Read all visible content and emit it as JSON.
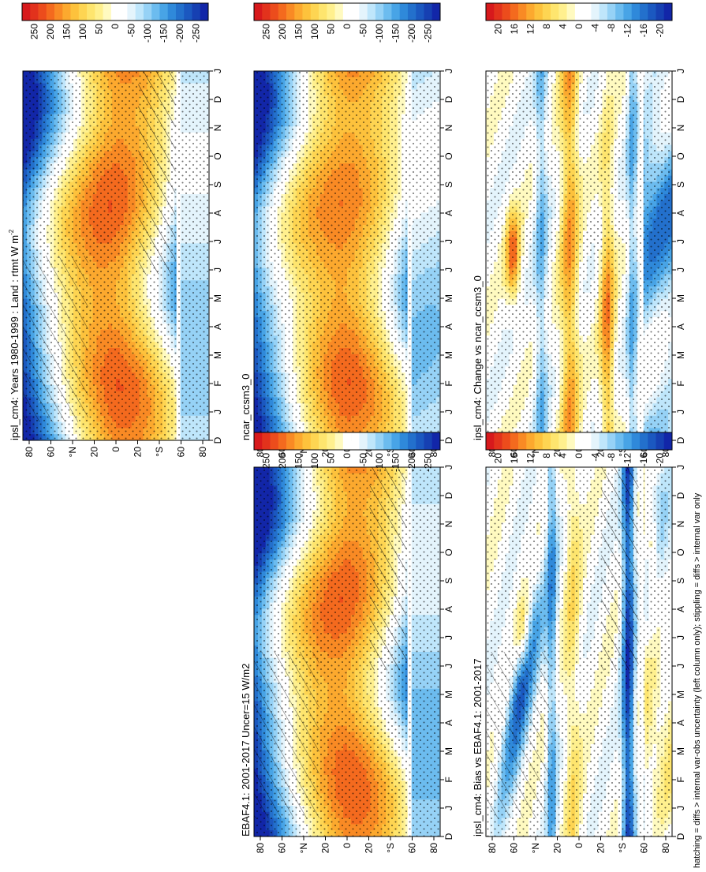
{
  "figure": {
    "footnote": "hatching = diffs > internal var-obs uncertainty (left column only); stippling = diffs > internal var only"
  },
  "chart_data": [
    {
      "type": "heatmap",
      "id": "ipsl",
      "title": "ipsl_cm4: Years 1980-1999 : Land : rtmt W m",
      "title_sup": "-2",
      "x": [
        "D",
        "J",
        "F",
        "M",
        "A",
        "M",
        "J",
        "J",
        "A",
        "S",
        "O",
        "N",
        "D",
        "J"
      ],
      "y_ticks": [
        "80",
        "60",
        "40",
        "20",
        "0",
        "20",
        "40",
        "60",
        "80"
      ],
      "y_ticks_display": [
        "80",
        "60",
        "°N",
        "20",
        "0",
        "20",
        "°S",
        "60",
        "80"
      ],
      "colorbar_ticks": [
        "250",
        "200",
        "150",
        "100",
        "50",
        "0",
        "-50",
        "-100",
        "-150",
        "-200",
        "-250"
      ],
      "levels": [
        -275,
        -250,
        -225,
        -200,
        -175,
        -150,
        -125,
        -100,
        -75,
        -50,
        -25,
        0,
        25,
        50,
        75,
        100,
        125,
        150,
        175,
        200,
        225,
        250,
        275
      ],
      "hatching": true,
      "stippling": true
    },
    {
      "type": "heatmap",
      "id": "ncar",
      "title": "ncar_ccsm3_0",
      "x": [
        "D",
        "J",
        "F",
        "M",
        "A",
        "M",
        "J",
        "J",
        "A",
        "S",
        "O",
        "N",
        "D",
        "J"
      ],
      "y_ticks": [
        "80",
        "60",
        "40",
        "20",
        "0",
        "20",
        "40",
        "60",
        "80"
      ],
      "y_ticks_display": [
        "80",
        "60",
        "°N",
        "20",
        "0",
        "20",
        "°S",
        "60",
        "80"
      ],
      "colorbar_ticks": [
        "250",
        "200",
        "150",
        "100",
        "50",
        "0",
        "-50",
        "-100",
        "-150",
        "-200",
        "-250"
      ],
      "levels": [
        -275,
        -250,
        -225,
        -200,
        -175,
        -150,
        -125,
        -100,
        -75,
        -50,
        -25,
        0,
        25,
        50,
        75,
        100,
        125,
        150,
        175,
        200,
        225,
        250,
        275
      ],
      "hatching": false,
      "stippling": true
    },
    {
      "type": "heatmap",
      "id": "ebaf",
      "title": "EBAF4.1: 2001-2017 Uncer=15 W/m2",
      "x": [
        "D",
        "J",
        "F",
        "M",
        "A",
        "M",
        "J",
        "J",
        "A",
        "S",
        "O",
        "N",
        "D",
        "J"
      ],
      "y_ticks": [
        "80",
        "60",
        "40",
        "20",
        "0",
        "20",
        "40",
        "60",
        "80"
      ],
      "y_ticks_display": [
        "80",
        "60",
        "°N",
        "20",
        "0",
        "20",
        "°S",
        "60",
        "80"
      ],
      "colorbar_ticks": [
        "250",
        "200",
        "150",
        "100",
        "50",
        "0",
        "-50",
        "-100",
        "-150",
        "-200",
        "-250"
      ],
      "levels": [
        -275,
        -250,
        -225,
        -200,
        -175,
        -150,
        -125,
        -100,
        -75,
        -50,
        -25,
        0,
        25,
        50,
        75,
        100,
        125,
        150,
        175,
        200,
        225,
        250,
        275
      ],
      "hatching": true,
      "stippling": true
    },
    {
      "type": "heatmap",
      "id": "change",
      "title": "ipsl_cm4: Change vs ncar_ccsm3_0",
      "x": [
        "D",
        "J",
        "F",
        "M",
        "A",
        "M",
        "J",
        "J",
        "A",
        "S",
        "O",
        "N",
        "D",
        "J"
      ],
      "y_ticks": [
        "80",
        "60",
        "40",
        "20",
        "0",
        "20",
        "40",
        "60",
        "80"
      ],
      "y_ticks_display": [
        "80",
        "60",
        "°N",
        "20",
        "0",
        "20",
        "°S",
        "60",
        "80"
      ],
      "colorbar_ticks": [
        "20",
        "16",
        "12",
        "8",
        "4",
        "0",
        "-4",
        "-8",
        "-12",
        "-16",
        "-20"
      ],
      "levels": [
        -22,
        -20,
        -18,
        -16,
        -14,
        -12,
        -10,
        -8,
        -6,
        -4,
        -2,
        0,
        2,
        4,
        6,
        8,
        10,
        12,
        14,
        16,
        18,
        20,
        22
      ],
      "hatching": false,
      "stippling": true
    },
    {
      "type": "heatmap",
      "id": "bias",
      "title": "ipsl_cm4: Bias vs EBAF4.1: 2001-2017",
      "x": [
        "D",
        "J",
        "F",
        "M",
        "A",
        "M",
        "J",
        "J",
        "A",
        "S",
        "O",
        "N",
        "D",
        "J"
      ],
      "y_ticks": [
        "80",
        "60",
        "40",
        "20",
        "0",
        "20",
        "40",
        "60",
        "80"
      ],
      "y_ticks_display": [
        "80",
        "60",
        "°N",
        "20",
        "0",
        "20",
        "°S",
        "60",
        "80"
      ],
      "colorbar_ticks": [
        "20",
        "16",
        "12",
        "8",
        "4",
        "0",
        "-4",
        "-8",
        "-12",
        "-16",
        "-20"
      ],
      "levels": [
        -22,
        -20,
        -18,
        -16,
        -14,
        -12,
        -10,
        -8,
        -6,
        -4,
        -2,
        0,
        2,
        4,
        6,
        8,
        10,
        12,
        14,
        16,
        18,
        20,
        22
      ],
      "hatching": true,
      "stippling": true
    }
  ],
  "colors": {
    "palette": [
      "#d7191c",
      "#e2321c",
      "#ec4c1c",
      "#f46a1e",
      "#f98a24",
      "#fca92e",
      "#fdc23c",
      "#fed552",
      "#fee56e",
      "#fff08e",
      "#fffac0",
      "#ffffff",
      "#ffffff",
      "#e4f4fc",
      "#bfe6fb",
      "#96d2f6",
      "#6cbcef",
      "#48a4e6",
      "#2f89da",
      "#2370cc",
      "#1b58c0",
      "#1640b2",
      "#1226a8"
    ]
  }
}
